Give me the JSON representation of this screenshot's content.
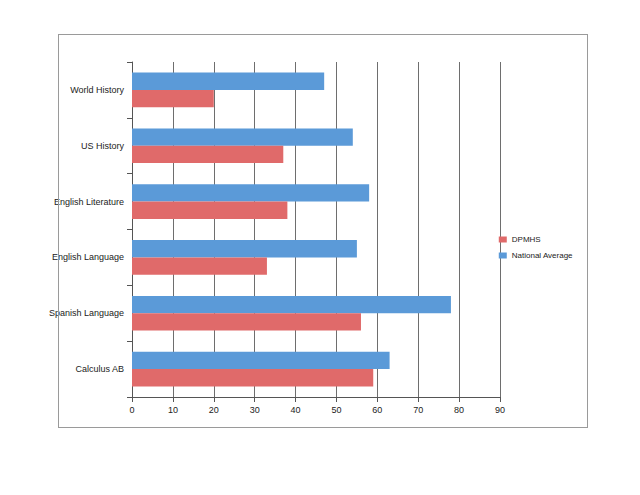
{
  "chart_data": {
    "type": "bar",
    "orientation": "horizontal",
    "categories": [
      "Calculus AB",
      "Spanish Language",
      "English Language",
      "English Literature",
      "US History",
      "World History"
    ],
    "series": [
      {
        "name": "DPMHS",
        "color": "#e06a6a",
        "values": [
          59,
          56,
          33,
          38,
          37,
          20
        ]
      },
      {
        "name": "National Average",
        "color": "#5b9ad8",
        "values": [
          63,
          78,
          55,
          58,
          54,
          47
        ]
      }
    ],
    "xlim": [
      0,
      90
    ],
    "xticks": [
      0,
      10,
      20,
      30,
      40,
      50,
      60,
      70,
      80,
      90
    ],
    "grid": true,
    "legend": "right"
  }
}
